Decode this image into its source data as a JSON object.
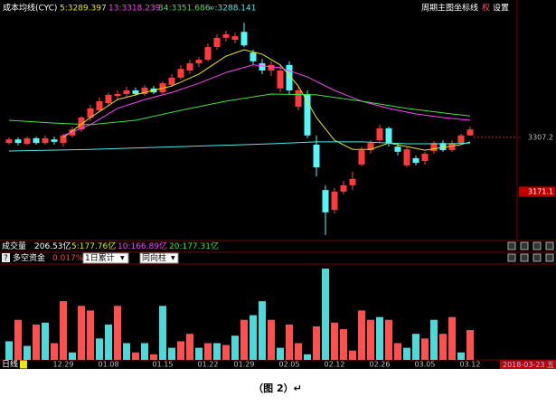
{
  "header": {
    "indicator": "成本均线(CYC)",
    "menu": [
      "周期",
      "主图",
      "坐标线",
      "权",
      "设置"
    ]
  },
  "volume_panel": {
    "title": "成交量",
    "value": "206.53亿",
    "items": [
      {
        "text": "5:177.76亿",
        "color": "#e8e800"
      },
      {
        "text": "10:166.89亿",
        "color": "#ff40ff"
      },
      {
        "text": "20:177.31亿",
        "color": "#40e040"
      }
    ]
  },
  "chart_data": [
    {
      "type": "candlestick",
      "up_color": "#ff3b3b",
      "down_color": "#54f8f8",
      "ylim": [
        3050.5,
        3652
      ],
      "yticks": [
        3307.2,
        3171.1
      ],
      "open": [
        3293,
        3302,
        3291,
        3305,
        3293,
        3302,
        3293,
        3312,
        3327,
        3357,
        3375,
        3393,
        3411,
        3416,
        3425,
        3416,
        3430,
        3420,
        3439,
        3457,
        3475,
        3493,
        3502,
        3534,
        3557,
        3552,
        3572,
        3520,
        3493,
        3475,
        3430,
        3489,
        3384,
        3416,
        3289,
        3175,
        3125,
        3171,
        3187,
        3239,
        3275,
        3300,
        3330,
        3284,
        3237,
        3255,
        3248,
        3273,
        3293,
        3275,
        3293,
        3312
      ],
      "high": [
        3307,
        3307,
        3309,
        3309,
        3312,
        3309,
        3316,
        3334,
        3361,
        3389,
        3407,
        3420,
        3425,
        3434,
        3432,
        3439,
        3436,
        3448,
        3466,
        3489,
        3502,
        3509,
        3543,
        3566,
        3575,
        3570,
        3595,
        3527,
        3504,
        3498,
        3489,
        3498,
        3434,
        3425,
        3312,
        3187,
        3180,
        3198,
        3221,
        3284,
        3300,
        3339,
        3334,
        3293,
        3282,
        3262,
        3271,
        3298,
        3300,
        3300,
        3316,
        3334
      ],
      "low": [
        3289,
        3287,
        3287,
        3289,
        3289,
        3289,
        3284,
        3307,
        3321,
        3348,
        3371,
        3386,
        3402,
        3407,
        3411,
        3411,
        3416,
        3416,
        3434,
        3452,
        3466,
        3484,
        3498,
        3527,
        3548,
        3543,
        3534,
        3489,
        3466,
        3461,
        3420,
        3416,
        3375,
        3305,
        3209,
        3062,
        3116,
        3164,
        3175,
        3234,
        3266,
        3293,
        3284,
        3262,
        3232,
        3237,
        3239,
        3266,
        3271,
        3271,
        3289,
        3312
      ],
      "close": [
        3302,
        3293,
        3305,
        3293,
        3305,
        3296,
        3312,
        3327,
        3357,
        3380,
        3398,
        3414,
        3416,
        3425,
        3416,
        3432,
        3420,
        3443,
        3457,
        3479,
        3493,
        3502,
        3534,
        3557,
        3566,
        3561,
        3538,
        3498,
        3475,
        3489,
        3475,
        3425,
        3425,
        3312,
        3232,
        3119,
        3171,
        3187,
        3203,
        3275,
        3293,
        3330,
        3293,
        3271,
        3277,
        3243,
        3266,
        3293,
        3275,
        3293,
        3312,
        3327
      ],
      "series": [
        {
          "name": "5:3289.397",
          "color": "#e8e800",
          "x": [
            6,
            9,
            12,
            15,
            18,
            21,
            24,
            26,
            28,
            30,
            32,
            34,
            36,
            38,
            40,
            42,
            44,
            46,
            48,
            50,
            51
          ],
          "values": [
            3307,
            3357,
            3402,
            3420,
            3436,
            3466,
            3511,
            3527,
            3516,
            3489,
            3436,
            3357,
            3300,
            3277,
            3277,
            3293,
            3284,
            3275,
            3282,
            3289,
            3296
          ]
        },
        {
          "name": "13:3318.239",
          "color": "#ff40ff",
          "x": [
            6,
            9,
            12,
            15,
            18,
            21,
            24,
            27,
            30,
            33,
            36,
            39,
            42,
            45,
            48,
            51
          ],
          "values": [
            3312,
            3339,
            3380,
            3402,
            3420,
            3443,
            3470,
            3489,
            3482,
            3459,
            3425,
            3398,
            3380,
            3366,
            3357,
            3350
          ]
        },
        {
          "name": "34:3351.686",
          "color": "#40e040",
          "x": [
            0,
            5,
            9,
            14,
            19,
            24,
            29,
            34,
            39,
            44,
            49,
            51
          ],
          "values": [
            3350,
            3343,
            3339,
            3350,
            3375,
            3398,
            3416,
            3414,
            3398,
            3380,
            3366,
            3361
          ]
        },
        {
          "name": "∞:3288.141",
          "color": "#50e8e8",
          "x": [
            0,
            9,
            19,
            29,
            34,
            39,
            44,
            49,
            51
          ],
          "values": [
            3273,
            3277,
            3284,
            3291,
            3296,
            3296,
            3291,
            3291,
            3293
          ]
        }
      ]
    },
    {
      "type": "bar",
      "title": "多空资金",
      "value_label": "0.017%",
      "selectors": [
        "1日累计",
        "同向柱"
      ],
      "period": "日线",
      "cursor_date": "2018-03-23 五",
      "categories": [
        null,
        null,
        null,
        null,
        null,
        null,
        "12.29",
        null,
        null,
        null,
        null,
        "01.08",
        null,
        null,
        null,
        null,
        null,
        "01.15",
        null,
        null,
        null,
        null,
        "01.22",
        null,
        null,
        null,
        "01.29",
        null,
        null,
        null,
        null,
        "02.05",
        null,
        null,
        null,
        null,
        "02.12",
        null,
        null,
        null,
        null,
        "02.26",
        null,
        null,
        null,
        null,
        "03.05",
        null,
        null,
        null,
        null,
        "03.12"
      ],
      "ylim": [
        0,
        100
      ],
      "values": [
        20,
        43,
        15,
        38,
        40,
        18,
        63,
        8,
        58,
        53,
        23,
        38,
        58,
        18,
        8,
        18,
        6,
        58,
        13,
        20,
        28,
        13,
        18,
        18,
        16,
        26,
        43,
        48,
        63,
        43,
        13,
        38,
        18,
        6,
        36,
        98,
        40,
        33,
        10,
        53,
        43,
        46,
        43,
        18,
        13,
        28,
        23,
        43,
        28,
        46,
        8,
        32
      ],
      "colors": [
        "#4ed8d8",
        "#ff5050",
        "#4ed8d8",
        "#ff5050",
        "#4ed8d8",
        "#ff5050",
        "#ff5050",
        "#4ed8d8",
        "#ff5050",
        "#ff5050",
        "#4ed8d8",
        "#4ed8d8",
        "#ff5050",
        "#4ed8d8",
        "#ff5050",
        "#4ed8d8",
        "#ff5050",
        "#4ed8d8",
        "#4ed8d8",
        "#ff5050",
        "#ff5050",
        "#4ed8d8",
        "#ff5050",
        "#4ed8d8",
        "#ff5050",
        "#4ed8d8",
        "#ff5050",
        "#4ed8d8",
        "#4ed8d8",
        "#ff5050",
        "#4ed8d8",
        "#ff5050",
        "#ff5050",
        "#4ed8d8",
        "#ff5050",
        "#4ed8d8",
        "#ff5050",
        "#ff5050",
        "#ff5050",
        "#ff5050",
        "#ff5050",
        "#4ed8d8",
        "#ff5050",
        "#ff5050",
        "#4ed8d8",
        "#4ed8d8",
        "#ff5050",
        "#4ed8d8",
        "#ff5050",
        "#ff5050",
        "#4ed8d8",
        "#ff5050"
      ]
    }
  ],
  "caption": "（图 2）↵"
}
